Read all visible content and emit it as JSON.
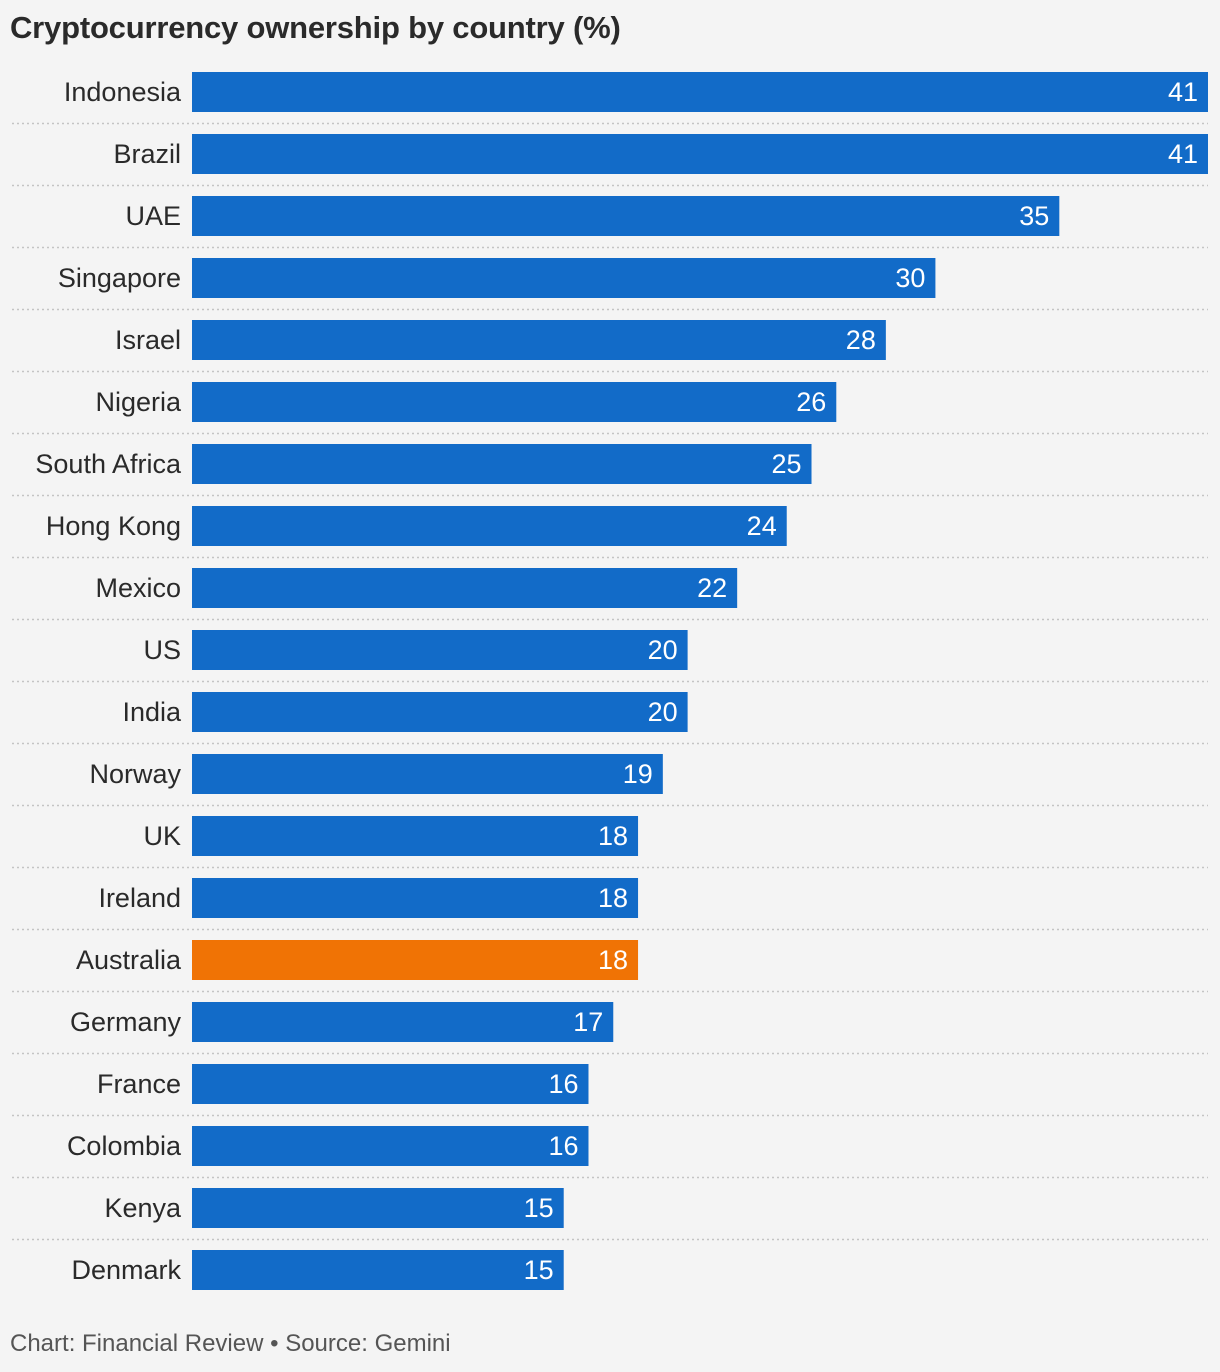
{
  "chart_data": {
    "type": "bar",
    "orientation": "horizontal",
    "title": "Cryptocurrency ownership by country (%)",
    "categories": [
      "Indonesia",
      "Brazil",
      "UAE",
      "Singapore",
      "Israel",
      "Nigeria",
      "South Africa",
      "Hong Kong",
      "Mexico",
      "US",
      "India",
      "Norway",
      "UK",
      "Ireland",
      "Australia",
      "Germany",
      "France",
      "Colombia",
      "Kenya",
      "Denmark"
    ],
    "values": [
      41,
      41,
      35,
      30,
      28,
      26,
      25,
      24,
      22,
      20,
      20,
      19,
      18,
      18,
      18,
      17,
      16,
      16,
      15,
      15
    ],
    "highlight": "Australia",
    "colors": {
      "bar": "#126bc8",
      "highlight": "#f07305"
    },
    "xlim": [
      0,
      41
    ],
    "grid": false,
    "legend": "none",
    "xlabel": "",
    "ylabel": ""
  },
  "footer": {
    "credit": "Chart: Financial Review",
    "separator": "•",
    "source": "Source: Gemini"
  }
}
